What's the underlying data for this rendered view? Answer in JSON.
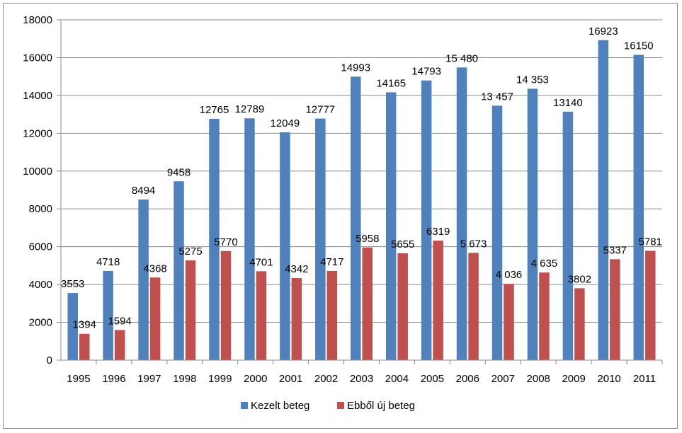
{
  "chart_data": {
    "type": "bar",
    "categories": [
      "1995",
      "1996",
      "1997",
      "1998",
      "1999",
      "2000",
      "2001",
      "2002",
      "2003",
      "2004",
      "2005",
      "2006",
      "2007",
      "2008",
      "2009",
      "2010",
      "2011"
    ],
    "series": [
      {
        "name": "Kezelt beteg",
        "color": "#4f81bd",
        "values": [
          3553,
          4718,
          8494,
          9458,
          12765,
          12789,
          12049,
          12777,
          14993,
          14165,
          14793,
          15480,
          13457,
          14353,
          13140,
          16923,
          16150
        ],
        "labels": [
          "3553",
          "4718",
          "8494",
          "9458",
          "12765",
          "12789",
          "12049",
          "12777",
          "14993",
          "14165",
          "14793",
          "15 480",
          "13 457",
          "14 353",
          "13140",
          "16923",
          "16150"
        ]
      },
      {
        "name": "Ebből új beteg",
        "color": "#c0504d",
        "values": [
          1394,
          1594,
          4368,
          5275,
          5770,
          4701,
          4342,
          4717,
          5958,
          5655,
          6319,
          5673,
          4036,
          4635,
          3802,
          5337,
          5781
        ],
        "labels": [
          "1394",
          "1594",
          "4368",
          "5275",
          "5770",
          "4701",
          "4342",
          "4717",
          "5958",
          "5655",
          "6319",
          "5 673",
          "4 036",
          "4 635",
          "3802",
          "5337",
          "5781"
        ]
      }
    ],
    "yticks": [
      "0",
      "2000",
      "4000",
      "6000",
      "8000",
      "10000",
      "12000",
      "14000",
      "16000",
      "18000"
    ],
    "ylim": [
      0,
      18000
    ],
    "grid": true,
    "legend_position": "bottom"
  }
}
